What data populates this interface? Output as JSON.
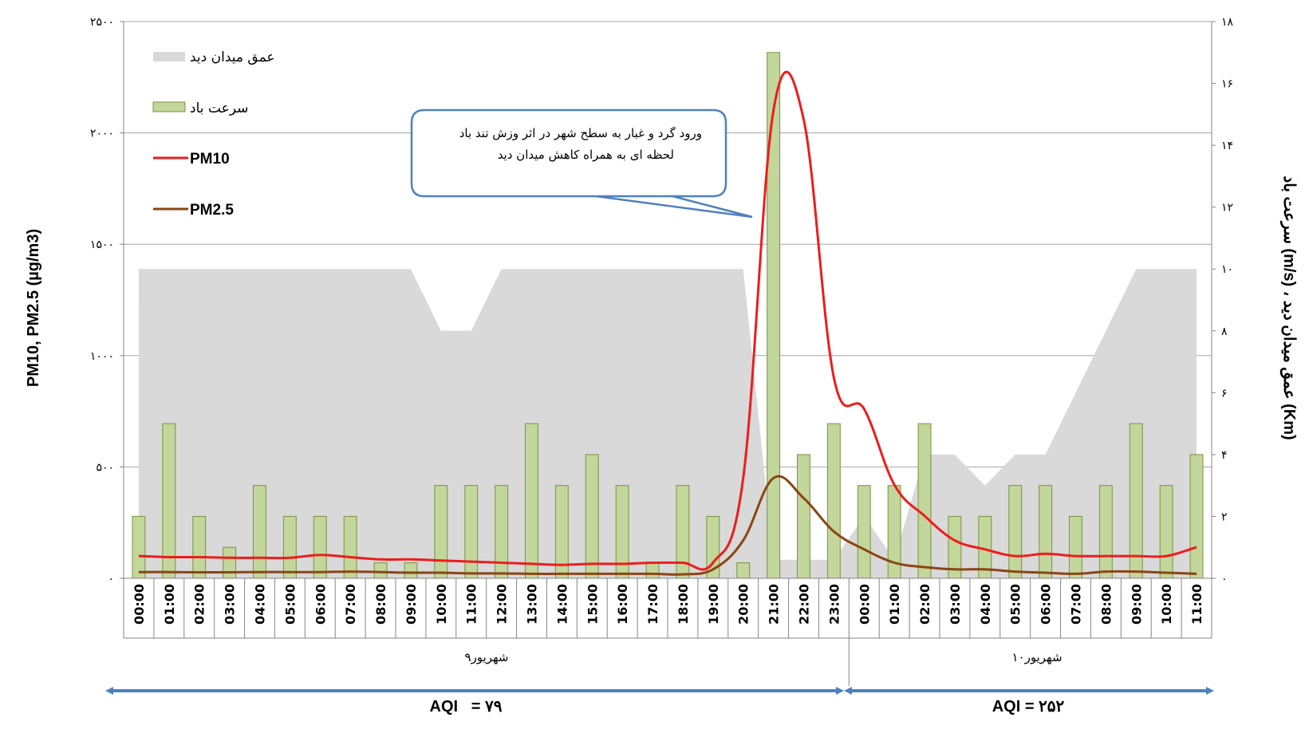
{
  "chart_data": {
    "type": "bar",
    "x_categories": [
      "00:00",
      "01:00",
      "02:00",
      "03:00",
      "04:00",
      "05:00",
      "06:00",
      "07:00",
      "08:00",
      "09:00",
      "10:00",
      "11:00",
      "12:00",
      "13:00",
      "14:00",
      "15:00",
      "16:00",
      "17:00",
      "18:00",
      "19:00",
      "20:00",
      "21:00",
      "22:00",
      "23:00",
      "00:00",
      "01:00",
      "02:00",
      "03:00",
      "04:00",
      "05:00",
      "06:00",
      "07:00",
      "08:00",
      "09:00",
      "10:00",
      "11:00"
    ],
    "date_groups": [
      {
        "label": "۹شهریور",
        "span": 24
      },
      {
        "label": "۱۰شهریور",
        "span": 12
      }
    ],
    "left_axis": {
      "label": "PM10, PM2.5 (µg/m3)",
      "ylim": [
        0,
        2500
      ],
      "ticks": [
        0,
        500,
        1000,
        1500,
        2000,
        2500
      ],
      "tick_labels": [
        "۰",
        "۵۰۰",
        "۱۰۰۰",
        "۱۵۰۰",
        "۲۰۰۰",
        "۲۵۰۰"
      ]
    },
    "right_axis": {
      "label": "سرعت باد (m/s) ، عمق میدان دید (Km)",
      "ylim": [
        0,
        18
      ],
      "ticks": [
        0,
        2,
        4,
        6,
        8,
        10,
        12,
        14,
        16,
        18
      ],
      "tick_labels": [
        "۰",
        "۲",
        "۴",
        "۶",
        "۸",
        "۱۰",
        "۱۲",
        "۱۴",
        "۱۶",
        "۱۸"
      ]
    },
    "gridlines": "horizontal",
    "legend_position": "top-left",
    "series": [
      {
        "name": "عمق میدان دید",
        "type": "area",
        "axis": "right",
        "color": "#d9d9d9",
        "values": [
          10,
          10,
          10,
          10,
          10,
          10,
          10,
          10,
          10,
          10,
          8,
          8,
          10,
          10,
          10,
          10,
          10,
          10,
          10,
          10,
          10,
          0.6,
          0.6,
          0.6,
          2,
          0.6,
          4,
          4,
          3,
          4,
          4,
          6,
          8,
          10,
          10,
          10
        ]
      },
      {
        "name": "سرعت باد",
        "type": "bar",
        "axis": "right",
        "color": "#c3d69b",
        "stroke": "#77933c",
        "values": [
          2,
          5,
          2,
          1,
          3,
          2,
          2,
          2,
          0.5,
          0.5,
          3,
          3,
          3,
          5,
          3,
          4,
          3,
          0.5,
          3,
          2,
          0.5,
          17,
          4,
          5,
          3,
          3,
          5,
          2,
          2,
          3,
          3,
          2,
          3,
          5,
          3,
          4
        ]
      },
      {
        "name": "PM10",
        "type": "line",
        "axis": "left",
        "color": "#ee1c1c",
        "values": [
          100,
          95,
          95,
          92,
          92,
          92,
          105,
          95,
          85,
          85,
          80,
          75,
          70,
          65,
          60,
          65,
          65,
          70,
          70,
          70,
          450,
          2100,
          2060,
          900,
          760,
          420,
          280,
          170,
          130,
          100,
          110,
          100,
          100,
          100,
          100,
          140
        ]
      },
      {
        "name": "PM2.5",
        "type": "line",
        "axis": "left",
        "color": "#8b4513",
        "values": [
          28,
          28,
          27,
          27,
          28,
          28,
          28,
          30,
          28,
          25,
          25,
          22,
          22,
          20,
          20,
          20,
          20,
          20,
          18,
          40,
          170,
          450,
          360,
          210,
          130,
          70,
          50,
          40,
          40,
          30,
          25,
          20,
          30,
          30,
          25,
          20
        ]
      }
    ],
    "annotations": {
      "callout": [
        "ورود گرد و غبار به سطح شهر در اثر وزش تند باد",
        "لحظه ای به همراه کاهش میدان دید"
      ],
      "aqi_left": "AQI   = ۷۹",
      "aqi_right": "AQI = ۲۵۲"
    }
  },
  "colors": {
    "visibility_area": "#d9d9d9",
    "wind_bar_fill": "#c3d69b",
    "wind_bar_stroke": "#77933c",
    "pm10": "#ee1c1c",
    "pm25": "#8b4513",
    "arrow": "#4f81bd",
    "callout_border": "#4f81bd"
  }
}
